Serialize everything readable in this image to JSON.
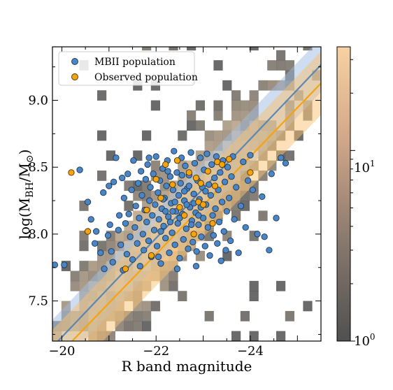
{
  "chart_data": {
    "type": "scatter",
    "xlabel": "R band magnitude",
    "ylabel": {
      "main": "log(M",
      "sub1": "BH",
      "mid": "/M",
      "sub2": "⊙",
      "end": ")"
    },
    "xlim": [
      -19.8,
      -25.5
    ],
    "ylim": [
      7.2,
      9.4
    ],
    "x_ticks": [
      {
        "value": -20,
        "label": "−20"
      },
      {
        "value": -22,
        "label": "−22"
      },
      {
        "value": -24,
        "label": "−24"
      }
    ],
    "y_ticks": [
      {
        "value": 7.5,
        "label": "7.5"
      },
      {
        "value": 8.0,
        "label": "8.0"
      },
      {
        "value": 8.5,
        "label": "8.5"
      },
      {
        "value": 9.0,
        "label": "9.0"
      }
    ],
    "legend": {
      "position": "top-left",
      "entries": [
        {
          "name": "MBII population",
          "color": "#4a86c5"
        },
        {
          "name": "Observed population",
          "color": "#f5a30f"
        }
      ]
    },
    "colorbar": {
      "scale": "log",
      "range": [
        1,
        35
      ],
      "ticks": [
        {
          "value": 1,
          "base": "10",
          "exp": "0"
        },
        {
          "value": 10,
          "base": "10",
          "exp": "1"
        }
      ],
      "color_low": "#505050",
      "color_high": "#f7d2a2"
    },
    "fits": [
      {
        "name": "MBII population",
        "color": "#5b87b5",
        "band_color": "#9dbce0",
        "slope": -0.37,
        "intercept": -0.17,
        "band_halfwidth_mag": 0.55
      },
      {
        "name": "Observed population",
        "color": "#f5a30f",
        "band_color": "#f7c271",
        "slope": -0.365,
        "intercept": -0.18,
        "band_halfwidth_mag": 0.65
      }
    ],
    "series": [
      {
        "name": "MBII population",
        "color": "#4a86c5",
        "points": [
          [
            -19.85,
            7.77
          ],
          [
            -20.05,
            7.77
          ],
          [
            -20.38,
            8.48
          ],
          [
            -20.55,
            8.24
          ],
          [
            -20.62,
            8.11
          ],
          [
            -20.7,
            7.93
          ],
          [
            -20.73,
            8.02
          ],
          [
            -20.82,
            7.86
          ],
          [
            -20.88,
            8.31
          ],
          [
            -20.9,
            7.74
          ],
          [
            -20.98,
            7.99
          ],
          [
            -21.0,
            8.36
          ],
          [
            -21.02,
            8.07
          ],
          [
            -21.05,
            7.87
          ],
          [
            -21.08,
            7.79
          ],
          [
            -21.1,
            8.39
          ],
          [
            -21.15,
            8.57
          ],
          [
            -21.2,
            8.03
          ],
          [
            -21.22,
            8.14
          ],
          [
            -21.25,
            7.92
          ],
          [
            -21.28,
            8.42
          ],
          [
            -21.3,
            7.73
          ],
          [
            -21.32,
            8.27
          ],
          [
            -21.35,
            8.08
          ],
          [
            -21.38,
            7.85
          ],
          [
            -21.4,
            8.45
          ],
          [
            -21.42,
            8.15
          ],
          [
            -21.45,
            7.98
          ],
          [
            -21.48,
            8.33
          ],
          [
            -21.5,
            7.81
          ],
          [
            -21.52,
            8.55
          ],
          [
            -21.55,
            8.05
          ],
          [
            -21.57,
            8.21
          ],
          [
            -21.6,
            7.93
          ],
          [
            -21.62,
            8.38
          ],
          [
            -21.64,
            8.12
          ],
          [
            -21.66,
            7.76
          ],
          [
            -21.68,
            8.47
          ],
          [
            -21.7,
            8.29
          ],
          [
            -21.72,
            8.0
          ],
          [
            -21.74,
            7.88
          ],
          [
            -21.76,
            8.18
          ],
          [
            -21.78,
            8.41
          ],
          [
            -21.8,
            8.09
          ],
          [
            -21.82,
            8.52
          ],
          [
            -21.84,
            7.95
          ],
          [
            -21.86,
            8.25
          ],
          [
            -21.88,
            8.35
          ],
          [
            -21.9,
            7.83
          ],
          [
            -21.92,
            8.14
          ],
          [
            -21.94,
            8.45
          ],
          [
            -21.96,
            8.03
          ],
          [
            -21.98,
            8.22
          ],
          [
            -22.0,
            8.58
          ],
          [
            -22.02,
            7.91
          ],
          [
            -22.04,
            8.31
          ],
          [
            -22.06,
            8.11
          ],
          [
            -22.08,
            8.4
          ],
          [
            -22.1,
            7.78
          ],
          [
            -22.12,
            8.19
          ],
          [
            -22.14,
            8.49
          ],
          [
            -22.16,
            8.06
          ],
          [
            -22.18,
            8.27
          ],
          [
            -22.2,
            7.97
          ],
          [
            -22.22,
            8.36
          ],
          [
            -22.24,
            8.55
          ],
          [
            -22.26,
            8.13
          ],
          [
            -22.28,
            7.86
          ],
          [
            -22.3,
            8.43
          ],
          [
            -22.32,
            8.23
          ],
          [
            -22.34,
            8.01
          ],
          [
            -22.36,
            8.33
          ],
          [
            -22.38,
            8.62
          ],
          [
            -22.4,
            7.92
          ],
          [
            -22.42,
            8.17
          ],
          [
            -22.44,
            8.46
          ],
          [
            -22.46,
            8.08
          ],
          [
            -22.48,
            8.29
          ],
          [
            -22.5,
            7.82
          ],
          [
            -22.52,
            8.38
          ],
          [
            -22.54,
            8.57
          ],
          [
            -22.56,
            8.15
          ],
          [
            -22.58,
            7.96
          ],
          [
            -22.6,
            8.25
          ],
          [
            -22.62,
            8.51
          ],
          [
            -22.64,
            8.04
          ],
          [
            -22.66,
            8.34
          ],
          [
            -22.68,
            7.89
          ],
          [
            -22.7,
            8.44
          ],
          [
            -22.72,
            8.2
          ],
          [
            -22.74,
            8.61
          ],
          [
            -22.76,
            8.1
          ],
          [
            -22.78,
            7.94
          ],
          [
            -22.8,
            8.3
          ],
          [
            -22.82,
            8.53
          ],
          [
            -22.84,
            8.16
          ],
          [
            -22.86,
            7.87
          ],
          [
            -22.88,
            8.4
          ],
          [
            -22.9,
            8.07
          ],
          [
            -22.92,
            8.26
          ],
          [
            -22.94,
            8.57
          ],
          [
            -22.96,
            7.98
          ],
          [
            -22.98,
            8.35
          ],
          [
            -23.0,
            8.12
          ],
          [
            -23.02,
            8.48
          ],
          [
            -23.04,
            7.91
          ],
          [
            -23.06,
            8.22
          ],
          [
            -23.08,
            8.6
          ],
          [
            -23.1,
            8.05
          ],
          [
            -23.12,
            8.37
          ],
          [
            -23.14,
            7.84
          ],
          [
            -23.16,
            8.29
          ],
          [
            -23.18,
            8.52
          ],
          [
            -23.2,
            8.14
          ],
          [
            -23.22,
            7.99
          ],
          [
            -23.24,
            8.42
          ],
          [
            -23.26,
            8.19
          ],
          [
            -23.28,
            8.58
          ],
          [
            -23.3,
            7.93
          ],
          [
            -23.32,
            8.33
          ],
          [
            -23.34,
            8.09
          ],
          [
            -23.36,
            8.46
          ],
          [
            -23.38,
            7.8
          ],
          [
            -23.4,
            8.24
          ],
          [
            -23.42,
            8.55
          ],
          [
            -23.44,
            8.02
          ],
          [
            -23.46,
            8.39
          ],
          [
            -23.48,
            7.88
          ],
          [
            -23.5,
            8.17
          ],
          [
            -23.52,
            8.5
          ],
          [
            -23.55,
            8.27
          ],
          [
            -23.58,
            7.95
          ],
          [
            -23.6,
            8.43
          ],
          [
            -23.63,
            8.58
          ],
          [
            -23.66,
            8.11
          ],
          [
            -23.7,
            8.35
          ],
          [
            -23.75,
            7.86
          ],
          [
            -23.8,
            8.21
          ],
          [
            -23.85,
            8.54
          ],
          [
            -23.9,
            8.05
          ],
          [
            -23.95,
            8.4
          ],
          [
            -24.0,
            8.59
          ],
          [
            -24.05,
            8.33
          ],
          [
            -24.15,
            8.0
          ],
          [
            -24.25,
            8.28
          ],
          [
            -24.3,
            7.98
          ],
          [
            -24.4,
            7.88
          ],
          [
            -24.45,
            8.45
          ],
          [
            -24.55,
            8.12
          ],
          [
            -24.65,
            8.57
          ],
          [
            -24.75,
            8.53
          ],
          [
            -21.85,
            8.57
          ],
          [
            -22.05,
            7.83
          ],
          [
            -22.25,
            8.47
          ],
          [
            -22.45,
            7.74
          ],
          [
            -22.65,
            8.22
          ],
          [
            -22.85,
            7.76
          ],
          [
            -23.05,
            8.32
          ],
          [
            -22.15,
            8.26
          ],
          [
            -22.35,
            8.17
          ],
          [
            -22.55,
            8.44
          ],
          [
            -22.75,
            8.07
          ],
          [
            -22.95,
            8.2
          ],
          [
            -22.1,
            8.02
          ],
          [
            -22.3,
            8.09
          ],
          [
            -22.5,
            8.12
          ],
          [
            -22.7,
            8.36
          ],
          [
            -22.9,
            8.14
          ],
          [
            -22.2,
            8.17
          ],
          [
            -22.4,
            8.24
          ],
          [
            -22.6,
            8.32
          ],
          [
            -22.8,
            8.23
          ]
        ]
      },
      {
        "name": "Observed population",
        "color": "#f5a30f",
        "points": [
          [
            -20.2,
            8.46
          ],
          [
            -20.55,
            8.02
          ],
          [
            -21.35,
            7.74
          ],
          [
            -21.8,
            8.18
          ],
          [
            -21.9,
            7.84
          ],
          [
            -22.0,
            8.41
          ],
          [
            -22.1,
            8.27
          ],
          [
            -22.2,
            8.52
          ],
          [
            -22.35,
            8.37
          ],
          [
            -22.5,
            8.2
          ],
          [
            -22.6,
            8.14
          ],
          [
            -22.7,
            8.46
          ],
          [
            -22.8,
            8.0
          ],
          [
            -22.85,
            8.42
          ],
          [
            -22.9,
            8.24
          ],
          [
            -22.95,
            8.38
          ],
          [
            -23.0,
            8.22
          ],
          [
            -23.1,
            8.47
          ],
          [
            -23.2,
            8.08
          ],
          [
            -23.3,
            8.54
          ],
          [
            -23.4,
            8.52
          ],
          [
            -23.55,
            8.56
          ],
          [
            -24.0,
            8.46
          ],
          [
            -22.45,
            8.55
          ],
          [
            -23.25,
            8.36
          ]
        ]
      }
    ],
    "histogram": {
      "bin_width_mag": 0.19,
      "bin_height_dex": 0.075,
      "note_counts": "density cells behind scatter"
    }
  }
}
